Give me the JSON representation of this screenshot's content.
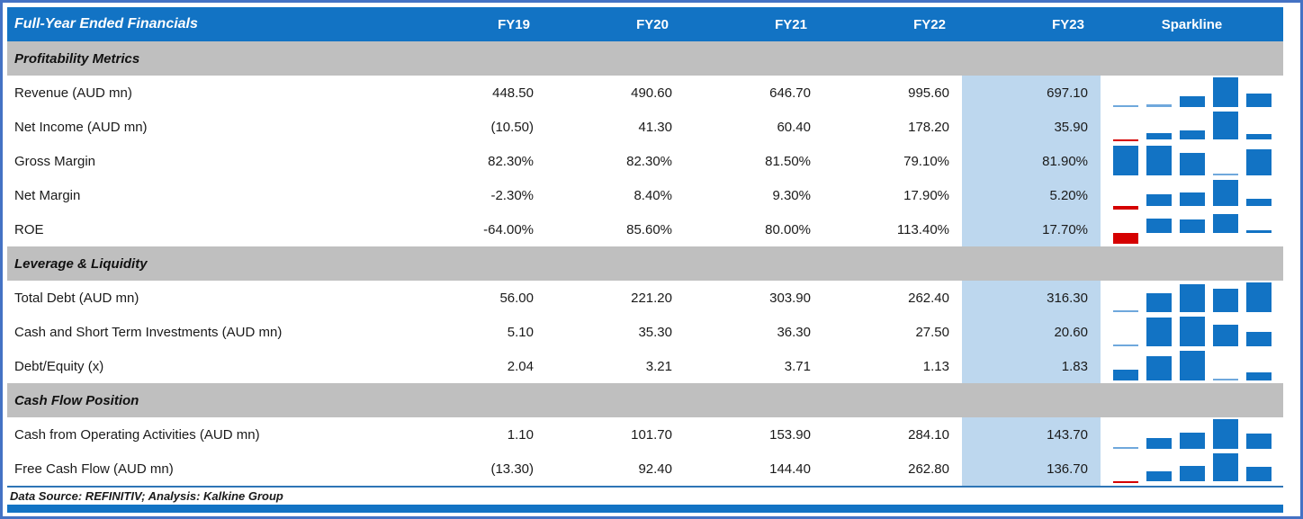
{
  "chart_data": {
    "type": "table",
    "title": "Full-Year Ended Financials",
    "columns": [
      "FY19",
      "FY20",
      "FY21",
      "FY22",
      "FY23",
      "Sparkline"
    ],
    "highlighted_column": "FY23",
    "sparkline_style": "column mini-chart per row; positive bars blue, negative bars red; bars scaled between row min and max",
    "sections": [
      {
        "label": "Profitability Metrics",
        "rows": [
          {
            "label": "Revenue (AUD mn)",
            "display": [
              "448.50",
              "490.60",
              "646.70",
              "995.60",
              "697.10"
            ],
            "values": [
              448.5,
              490.6,
              646.7,
              995.6,
              697.1
            ]
          },
          {
            "label": "Net Income (AUD mn)",
            "display": [
              "(10.50)",
              "41.30",
              "60.40",
              "178.20",
              "35.90"
            ],
            "values": [
              -10.5,
              41.3,
              60.4,
              178.2,
              35.9
            ]
          },
          {
            "label": "Gross Margin",
            "display": [
              "82.30%",
              "82.30%",
              "81.50%",
              "79.10%",
              "81.90%"
            ],
            "values": [
              82.3,
              82.3,
              81.5,
              79.1,
              81.9
            ]
          },
          {
            "label": "Net Margin",
            "display": [
              "-2.30%",
              "8.40%",
              "9.30%",
              "17.90%",
              "5.20%"
            ],
            "values": [
              -2.3,
              8.4,
              9.3,
              17.9,
              5.2
            ]
          },
          {
            "label": "ROE",
            "display": [
              "-64.00%",
              "85.60%",
              "80.00%",
              "113.40%",
              "17.70%"
            ],
            "values": [
              -64.0,
              85.6,
              80.0,
              113.4,
              17.7
            ]
          }
        ]
      },
      {
        "label": "Leverage & Liquidity",
        "rows": [
          {
            "label": "Total Debt (AUD mn)",
            "display": [
              "56.00",
              "221.20",
              "303.90",
              "262.40",
              "316.30"
            ],
            "values": [
              56.0,
              221.2,
              303.9,
              262.4,
              316.3
            ]
          },
          {
            "label": "Cash and Short Term Investments (AUD mn)",
            "display": [
              "5.10",
              "35.30",
              "36.30",
              "27.50",
              "20.60"
            ],
            "values": [
              5.1,
              35.3,
              36.3,
              27.5,
              20.6
            ]
          },
          {
            "label": "Debt/Equity (x)",
            "display": [
              "2.04",
              "3.21",
              "3.71",
              "1.13",
              "1.83"
            ],
            "values": [
              2.04,
              3.21,
              3.71,
              1.13,
              1.83
            ]
          }
        ]
      },
      {
        "label": "Cash Flow Position",
        "rows": [
          {
            "label": "Cash from Operating Activities (AUD mn)",
            "display": [
              "1.10",
              "101.70",
              "153.90",
              "284.10",
              "143.70"
            ],
            "values": [
              1.1,
              101.7,
              153.9,
              284.1,
              143.7
            ]
          },
          {
            "label": "Free Cash Flow (AUD mn)",
            "display": [
              "(13.30)",
              "92.40",
              "144.40",
              "262.80",
              "136.70"
            ],
            "values": [
              -13.3,
              92.4,
              144.4,
              262.8,
              136.7
            ]
          }
        ]
      }
    ],
    "footer": "Data Source: REFINITIV; Analysis: Kalkine Group"
  },
  "colors": {
    "header_bg": "#1273C4",
    "header_text": "#ffffff",
    "section_bg": "#BFBFBF",
    "fy23_highlight": "#BDD7EE",
    "positive_bar": "#1273C4",
    "positive_bar_sliver": "#6FA8DC",
    "negative_bar": "#D50000",
    "outer_border": "#4472C4",
    "bottom_bar": "#1273C4"
  }
}
